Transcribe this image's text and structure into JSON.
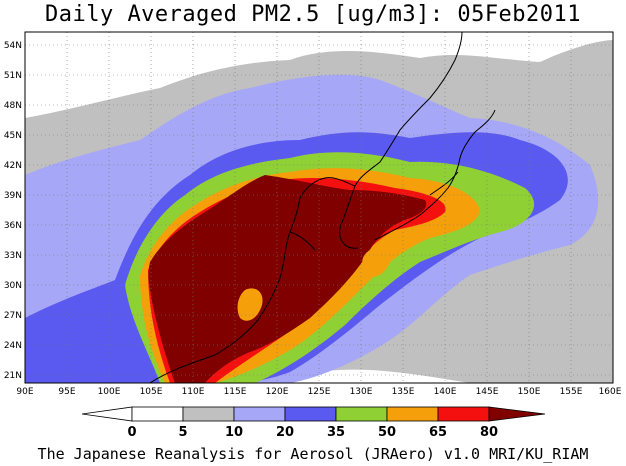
{
  "title": "Daily Averaged PM2.5 [ug/m3]: 05Feb2011",
  "footer": "The Japanese Reanalysis for Aerosol (JRAero) v1.0 MRI/KU_RIAM",
  "map": {
    "lon_range": [
      90,
      160
    ],
    "lat_range": [
      20,
      55
    ],
    "lon_ticks": [
      "90E",
      "95E",
      "100E",
      "105E",
      "110E",
      "115E",
      "120E",
      "125E",
      "130E",
      "135E",
      "140E",
      "145E",
      "150E",
      "155E",
      "160E"
    ],
    "lat_ticks": [
      "21N",
      "24N",
      "27N",
      "30N",
      "33N",
      "36N",
      "39N",
      "42N",
      "45N",
      "48N",
      "51N",
      "54N"
    ],
    "grid": true
  },
  "colorbar": {
    "levels": [
      "0",
      "5",
      "10",
      "20",
      "35",
      "50",
      "65",
      "80"
    ],
    "colors": [
      "#ffffff",
      "#ffffff",
      "#c0c0c0",
      "#a7a7f7",
      "#5a5af0",
      "#8fd035",
      "#f5a00a",
      "#f51010",
      "#800000"
    ]
  }
}
